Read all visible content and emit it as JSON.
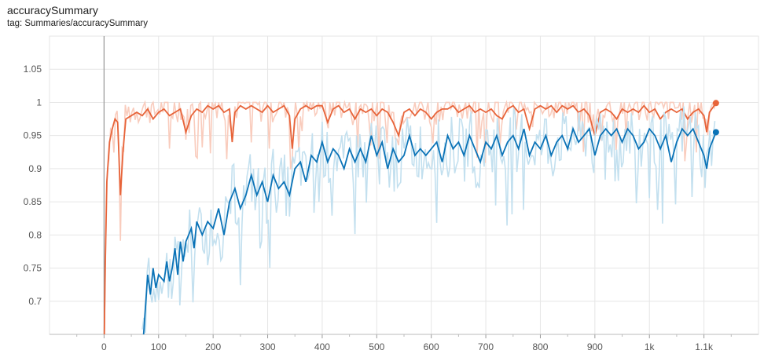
{
  "header": {
    "title": "accuracySummary",
    "tag": "tag: Summaries/accuracySummary"
  },
  "chart_data": {
    "type": "line",
    "title": "accuracySummary",
    "subtitle": "tag: Summaries/accuracySummary",
    "xlabel": "",
    "ylabel": "",
    "xlim": [
      -100,
      1200
    ],
    "ylim": [
      0.65,
      1.1
    ],
    "x_ticks": [
      0,
      100,
      200,
      300,
      400,
      500,
      600,
      700,
      800,
      900,
      1000,
      1100
    ],
    "x_tick_labels": [
      "0",
      "100",
      "200",
      "300",
      "400",
      "500",
      "600",
      "700",
      "800",
      "900",
      "1k",
      "1.1k"
    ],
    "y_ticks": [
      0.7,
      0.75,
      0.8,
      0.85,
      0.9,
      0.95,
      1.0,
      1.05
    ],
    "y_tick_labels": [
      "0.7",
      "0.75",
      "0.8",
      "0.85",
      "0.9",
      "0.95",
      "1",
      "1.05"
    ],
    "grid": true,
    "series": [
      {
        "color": "#e7643a",
        "raw_color": "#f9ccbd",
        "final_point": [
          1122,
          0.999
        ],
        "smoothed": [
          [
            0,
            0.62
          ],
          [
            2,
            0.75
          ],
          [
            5,
            0.88
          ],
          [
            10,
            0.94
          ],
          [
            15,
            0.96
          ],
          [
            20,
            0.975
          ],
          [
            25,
            0.97
          ],
          [
            30,
            0.86
          ],
          [
            35,
            0.93
          ],
          [
            40,
            0.975
          ],
          [
            50,
            0.98
          ],
          [
            60,
            0.985
          ],
          [
            70,
            0.98
          ],
          [
            80,
            0.99
          ],
          [
            90,
            0.975
          ],
          [
            100,
            0.985
          ],
          [
            110,
            0.99
          ],
          [
            120,
            0.98
          ],
          [
            130,
            0.985
          ],
          [
            140,
            0.99
          ],
          [
            150,
            0.955
          ],
          [
            160,
            0.98
          ],
          [
            170,
            0.99
          ],
          [
            180,
            0.985
          ],
          [
            190,
            0.995
          ],
          [
            200,
            0.99
          ],
          [
            210,
            0.995
          ],
          [
            220,
            0.985
          ],
          [
            230,
            0.99
          ],
          [
            235,
            0.94
          ],
          [
            240,
            0.985
          ],
          [
            250,
            0.995
          ],
          [
            260,
            0.99
          ],
          [
            270,
            0.995
          ],
          [
            280,
            0.99
          ],
          [
            290,
            0.985
          ],
          [
            300,
            0.995
          ],
          [
            310,
            0.985
          ],
          [
            320,
            0.99
          ],
          [
            330,
            0.995
          ],
          [
            340,
            0.98
          ],
          [
            345,
            0.93
          ],
          [
            350,
            0.975
          ],
          [
            360,
            0.99
          ],
          [
            370,
            0.995
          ],
          [
            380,
            0.99
          ],
          [
            390,
            0.995
          ],
          [
            400,
            0.995
          ],
          [
            410,
            0.97
          ],
          [
            420,
            0.99
          ],
          [
            430,
            0.995
          ],
          [
            440,
            0.985
          ],
          [
            450,
            0.99
          ],
          [
            460,
            0.975
          ],
          [
            470,
            0.99
          ],
          [
            480,
            0.985
          ],
          [
            490,
            0.99
          ],
          [
            500,
            0.98
          ],
          [
            510,
            0.99
          ],
          [
            520,
            0.985
          ],
          [
            530,
            0.97
          ],
          [
            540,
            0.95
          ],
          [
            550,
            0.985
          ],
          [
            560,
            0.99
          ],
          [
            570,
            0.98
          ],
          [
            580,
            0.99
          ],
          [
            590,
            0.985
          ],
          [
            600,
            0.975
          ],
          [
            610,
            0.985
          ],
          [
            620,
            0.99
          ],
          [
            630,
            0.99
          ],
          [
            640,
            0.995
          ],
          [
            650,
            0.985
          ],
          [
            660,
            0.99
          ],
          [
            670,
            0.995
          ],
          [
            680,
            0.985
          ],
          [
            690,
            0.99
          ],
          [
            700,
            0.985
          ],
          [
            710,
            0.99
          ],
          [
            720,
            0.98
          ],
          [
            730,
            0.975
          ],
          [
            740,
            0.99
          ],
          [
            750,
            0.995
          ],
          [
            760,
            0.985
          ],
          [
            770,
            0.99
          ],
          [
            780,
            0.96
          ],
          [
            790,
            0.99
          ],
          [
            800,
            0.995
          ],
          [
            810,
            0.99
          ],
          [
            820,
            0.995
          ],
          [
            830,
            0.985
          ],
          [
            840,
            0.995
          ],
          [
            850,
            0.99
          ],
          [
            860,
            0.995
          ],
          [
            870,
            0.985
          ],
          [
            880,
            0.99
          ],
          [
            890,
            0.98
          ],
          [
            900,
            0.95
          ],
          [
            910,
            0.985
          ],
          [
            920,
            0.99
          ],
          [
            930,
            0.985
          ],
          [
            940,
            0.975
          ],
          [
            950,
            0.99
          ],
          [
            960,
            0.985
          ],
          [
            970,
            0.99
          ],
          [
            980,
            0.985
          ],
          [
            990,
            0.995
          ],
          [
            1000,
            0.985
          ],
          [
            1010,
            0.99
          ],
          [
            1020,
            0.975
          ],
          [
            1030,
            0.985
          ],
          [
            1040,
            0.99
          ],
          [
            1050,
            0.985
          ],
          [
            1060,
            0.99
          ],
          [
            1070,
            0.975
          ],
          [
            1080,
            0.985
          ],
          [
            1090,
            0.99
          ],
          [
            1100,
            0.98
          ],
          [
            1105,
            0.955
          ],
          [
            1110,
            0.985
          ],
          [
            1122,
            0.999
          ]
        ]
      },
      {
        "color": "#0b73b7",
        "raw_color": "#c3e0ef",
        "final_point": [
          1122,
          0.955
        ],
        "smoothed": [
          [
            70,
            0.62
          ],
          [
            75,
            0.68
          ],
          [
            80,
            0.74
          ],
          [
            85,
            0.71
          ],
          [
            90,
            0.75
          ],
          [
            95,
            0.72
          ],
          [
            100,
            0.74
          ],
          [
            110,
            0.73
          ],
          [
            115,
            0.76
          ],
          [
            120,
            0.73
          ],
          [
            125,
            0.75
          ],
          [
            130,
            0.78
          ],
          [
            135,
            0.74
          ],
          [
            140,
            0.79
          ],
          [
            145,
            0.76
          ],
          [
            150,
            0.79
          ],
          [
            160,
            0.81
          ],
          [
            165,
            0.78
          ],
          [
            170,
            0.82
          ],
          [
            180,
            0.8
          ],
          [
            190,
            0.82
          ],
          [
            200,
            0.81
          ],
          [
            210,
            0.84
          ],
          [
            220,
            0.8
          ],
          [
            230,
            0.85
          ],
          [
            240,
            0.87
          ],
          [
            250,
            0.84
          ],
          [
            260,
            0.86
          ],
          [
            270,
            0.89
          ],
          [
            280,
            0.86
          ],
          [
            290,
            0.88
          ],
          [
            300,
            0.85
          ],
          [
            310,
            0.89
          ],
          [
            320,
            0.87
          ],
          [
            330,
            0.88
          ],
          [
            340,
            0.86
          ],
          [
            350,
            0.9
          ],
          [
            360,
            0.91
          ],
          [
            370,
            0.88
          ],
          [
            380,
            0.92
          ],
          [
            390,
            0.91
          ],
          [
            400,
            0.94
          ],
          [
            410,
            0.91
          ],
          [
            420,
            0.93
          ],
          [
            430,
            0.92
          ],
          [
            440,
            0.9
          ],
          [
            450,
            0.93
          ],
          [
            460,
            0.91
          ],
          [
            470,
            0.93
          ],
          [
            480,
            0.91
          ],
          [
            490,
            0.95
          ],
          [
            500,
            0.92
          ],
          [
            510,
            0.94
          ],
          [
            520,
            0.9
          ],
          [
            530,
            0.93
          ],
          [
            540,
            0.91
          ],
          [
            550,
            0.92
          ],
          [
            560,
            0.95
          ],
          [
            570,
            0.92
          ],
          [
            580,
            0.93
          ],
          [
            590,
            0.92
          ],
          [
            600,
            0.93
          ],
          [
            610,
            0.94
          ],
          [
            620,
            0.91
          ],
          [
            630,
            0.95
          ],
          [
            640,
            0.93
          ],
          [
            650,
            0.94
          ],
          [
            660,
            0.92
          ],
          [
            670,
            0.95
          ],
          [
            680,
            0.93
          ],
          [
            690,
            0.91
          ],
          [
            700,
            0.94
          ],
          [
            710,
            0.93
          ],
          [
            720,
            0.95
          ],
          [
            730,
            0.92
          ],
          [
            740,
            0.94
          ],
          [
            750,
            0.95
          ],
          [
            760,
            0.93
          ],
          [
            770,
            0.96
          ],
          [
            780,
            0.92
          ],
          [
            790,
            0.94
          ],
          [
            800,
            0.93
          ],
          [
            810,
            0.95
          ],
          [
            820,
            0.92
          ],
          [
            830,
            0.94
          ],
          [
            840,
            0.95
          ],
          [
            850,
            0.93
          ],
          [
            860,
            0.96
          ],
          [
            870,
            0.94
          ],
          [
            880,
            0.95
          ],
          [
            890,
            0.96
          ],
          [
            900,
            0.92
          ],
          [
            910,
            0.95
          ],
          [
            920,
            0.96
          ],
          [
            930,
            0.95
          ],
          [
            940,
            0.96
          ],
          [
            950,
            0.94
          ],
          [
            960,
            0.96
          ],
          [
            970,
            0.95
          ],
          [
            980,
            0.93
          ],
          [
            990,
            0.94
          ],
          [
            1000,
            0.96
          ],
          [
            1010,
            0.95
          ],
          [
            1020,
            0.93
          ],
          [
            1030,
            0.95
          ],
          [
            1040,
            0.91
          ],
          [
            1050,
            0.94
          ],
          [
            1060,
            0.96
          ],
          [
            1070,
            0.95
          ],
          [
            1080,
            0.96
          ],
          [
            1090,
            0.94
          ],
          [
            1100,
            0.92
          ],
          [
            1105,
            0.9
          ],
          [
            1110,
            0.93
          ],
          [
            1122,
            0.955
          ]
        ]
      }
    ]
  }
}
